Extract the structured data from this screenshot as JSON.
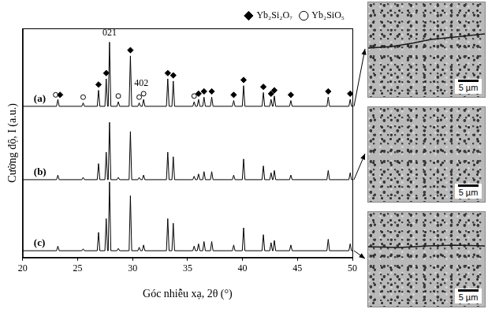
{
  "chart_data": {
    "type": "line",
    "x_label": "Góc nhiễu xạ, 2θ (°)",
    "y_label": "Cường độ, I (a.u.)",
    "x": [
      20,
      23.08,
      23.2,
      23.32,
      25.38,
      25.5,
      25.62,
      26.78,
      26.9,
      27.02,
      27.48,
      27.6,
      27.72,
      27.78,
      27.9,
      28.02,
      28.58,
      28.7,
      28.82,
      29.68,
      29.8,
      29.92,
      30.48,
      30.6,
      30.72,
      30.88,
      31.0,
      31.12,
      33.08,
      33.2,
      33.32,
      33.58,
      33.7,
      33.82,
      35.48,
      35.6,
      35.72,
      35.88,
      36.0,
      36.12,
      36.38,
      36.5,
      36.62,
      37.08,
      37.2,
      37.32,
      39.08,
      39.2,
      39.32,
      39.98,
      40.1,
      40.22,
      41.78,
      41.9,
      42.02,
      42.48,
      42.6,
      42.72,
      42.78,
      42.9,
      43.02,
      44.28,
      44.4,
      44.52,
      47.68,
      47.8,
      47.92,
      49.68,
      49.8,
      49.92,
      50
    ],
    "xlim": [
      20,
      50
    ],
    "xticks": [
      20,
      25,
      30,
      35,
      40,
      45,
      50
    ],
    "ylim": [
      0,
      100
    ],
    "tick_labels": "x",
    "grid": false,
    "legend": "top-right",
    "series": [
      {
        "label": "(a)",
        "color": "#000000",
        "values": [
          66,
          66,
          69,
          66,
          66,
          67.5,
          66,
          66,
          73,
          66,
          66,
          78,
          66,
          66,
          94,
          66,
          66,
          68,
          66,
          66,
          88,
          66,
          66,
          67.5,
          66,
          66,
          69,
          66,
          66,
          78,
          66,
          66,
          77,
          66,
          66,
          68,
          66,
          66,
          69,
          66,
          66,
          70,
          66,
          66,
          70,
          66,
          66,
          68.5,
          66,
          66,
          75,
          66,
          66,
          72,
          66,
          66,
          69,
          66,
          66,
          70.5,
          66,
          66,
          68.5,
          66,
          66,
          70,
          66,
          66,
          69,
          66,
          66
        ]
      },
      {
        "label": "(b)",
        "color": "#000000",
        "values": [
          34,
          34,
          36,
          34,
          34,
          35,
          34,
          34,
          41,
          34,
          34,
          46,
          34,
          34,
          59,
          34,
          34,
          35,
          34,
          34,
          55,
          34,
          34,
          35,
          34,
          34,
          36,
          34,
          34,
          46,
          34,
          34,
          44,
          34,
          34,
          35.5,
          34,
          34,
          36.5,
          34,
          34,
          37.5,
          34,
          34,
          37.5,
          34,
          34,
          36,
          34,
          34,
          43,
          34,
          34,
          40,
          34,
          34,
          37,
          34,
          34,
          38,
          34,
          34,
          36,
          34,
          34,
          38,
          34,
          34,
          37,
          34,
          34
        ]
      },
      {
        "label": "(c)",
        "color": "#000000",
        "values": [
          3,
          3,
          5,
          3,
          3,
          3.8,
          3,
          3,
          11,
          3,
          3,
          17,
          3,
          3,
          33,
          3,
          3,
          4,
          3,
          3,
          27,
          3,
          3,
          4.5,
          3,
          3,
          5.5,
          3,
          3,
          17,
          3,
          3,
          15,
          3,
          3,
          5,
          3,
          3,
          6,
          3,
          3,
          7,
          3,
          3,
          7,
          3,
          3,
          5.5,
          3,
          3,
          13,
          3,
          3,
          10,
          3,
          3,
          6.5,
          3,
          3,
          7.5,
          3,
          3,
          5.5,
          3,
          3,
          8,
          3,
          3,
          6,
          3,
          3
        ]
      }
    ],
    "peak_marks": [
      {
        "name": "Yb₂Si₂O₇",
        "marker": "diamond",
        "color": "#000000",
        "x": [
          23.4,
          26.9,
          27.6,
          29.8,
          33.2,
          33.7,
          36.0,
          36.5,
          37.2,
          39.2,
          40.1,
          41.9,
          42.6,
          42.9,
          44.4,
          47.8,
          49.8
        ],
        "values": [
          71,
          75.5,
          80.5,
          90.5,
          80.5,
          79.5,
          71.5,
          72.5,
          72.5,
          71,
          77.5,
          74.5,
          71.5,
          73,
          71,
          72.5,
          71.5
        ]
      },
      {
        "name": "Yb₂SiO₅",
        "marker": "circle",
        "color": "#000000",
        "x": [
          23.0,
          25.5,
          28.7,
          30.6,
          31.0,
          35.6
        ],
        "values": [
          71,
          70,
          70.5,
          70,
          71.5,
          70.5
        ]
      }
    ],
    "annotations": [
      {
        "text": "021",
        "x": 27.9,
        "y": 96
      },
      {
        "text": "402",
        "x": 30.8,
        "y": 74
      }
    ]
  },
  "images": [
    {
      "scale_bar": "5 µm",
      "crack": true
    },
    {
      "scale_bar": "5 µm",
      "crack": false
    },
    {
      "scale_bar": "5 µm",
      "crack": true
    }
  ]
}
